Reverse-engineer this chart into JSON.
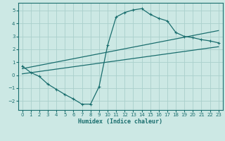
{
  "xlabel": "Humidex (Indice chaleur)",
  "background_color": "#cce8e4",
  "grid_color": "#aad0cc",
  "line_color": "#1a6e6e",
  "xlim": [
    -0.5,
    23.5
  ],
  "ylim": [
    -2.7,
    5.6
  ],
  "xticks": [
    0,
    1,
    2,
    3,
    4,
    5,
    6,
    7,
    8,
    9,
    10,
    11,
    12,
    13,
    14,
    15,
    16,
    17,
    18,
    19,
    20,
    21,
    22,
    23
  ],
  "yticks": [
    -2,
    -1,
    0,
    1,
    2,
    3,
    4,
    5
  ],
  "line1_x": [
    0,
    1,
    2,
    3,
    4,
    5,
    6,
    7,
    8,
    9,
    10,
    11,
    12,
    13,
    14,
    15,
    16,
    17,
    18,
    19,
    20,
    21,
    22,
    23
  ],
  "line1_y": [
    0.7,
    0.2,
    -0.1,
    -0.7,
    -1.1,
    -1.5,
    -1.85,
    -2.25,
    -2.25,
    -0.9,
    2.3,
    4.5,
    4.85,
    5.05,
    5.15,
    4.7,
    4.4,
    4.2,
    3.3,
    3.0,
    2.9,
    2.75,
    2.65,
    2.5
  ],
  "line2_x": [
    0,
    23
  ],
  "line2_y": [
    0.5,
    3.45
  ],
  "line3_x": [
    0,
    23
  ],
  "line3_y": [
    0.1,
    2.2
  ]
}
